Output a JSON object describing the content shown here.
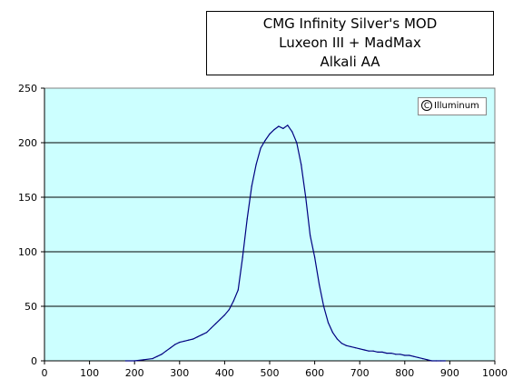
{
  "chart_data": {
    "type": "line",
    "title_lines": [
      "CMG Infinity  Silver's MOD",
      "Luxeon III + MadMax",
      "Alkali AA"
    ],
    "watermark": "Illuminum",
    "xlim": [
      0,
      1000
    ],
    "ylim": [
      0,
      250
    ],
    "xticks": [
      0,
      100,
      200,
      300,
      400,
      500,
      600,
      700,
      800,
      900,
      1000
    ],
    "yticks": [
      0,
      50,
      100,
      150,
      200,
      250
    ],
    "grid": true,
    "series": [
      {
        "x": [
          180,
          200,
          220,
          240,
          250,
          260,
          270,
          280,
          290,
          300,
          310,
          320,
          330,
          340,
          350,
          360,
          370,
          380,
          390,
          400,
          410,
          420,
          430,
          440,
          450,
          460,
          470,
          480,
          490,
          500,
          510,
          520,
          530,
          540,
          550,
          560,
          570,
          580,
          590,
          600,
          610,
          620,
          630,
          640,
          650,
          660,
          670,
          680,
          690,
          700,
          710,
          720,
          730,
          740,
          750,
          760,
          770,
          780,
          790,
          800,
          810,
          820,
          830,
          840,
          850,
          860,
          870,
          880,
          890
        ],
        "y": [
          0,
          0,
          1,
          2,
          4,
          6,
          9,
          12,
          15,
          17,
          18,
          19,
          20,
          22,
          24,
          26,
          30,
          34,
          38,
          42,
          47,
          55,
          65,
          95,
          130,
          160,
          180,
          195,
          202,
          208,
          212,
          215,
          213,
          216,
          210,
          200,
          180,
          150,
          115,
          95,
          70,
          50,
          35,
          26,
          20,
          16,
          14,
          13,
          12,
          11,
          10,
          9,
          9,
          8,
          8,
          7,
          7,
          6,
          6,
          5,
          5,
          4,
          3,
          2,
          1,
          0,
          0,
          0,
          0
        ]
      }
    ]
  }
}
